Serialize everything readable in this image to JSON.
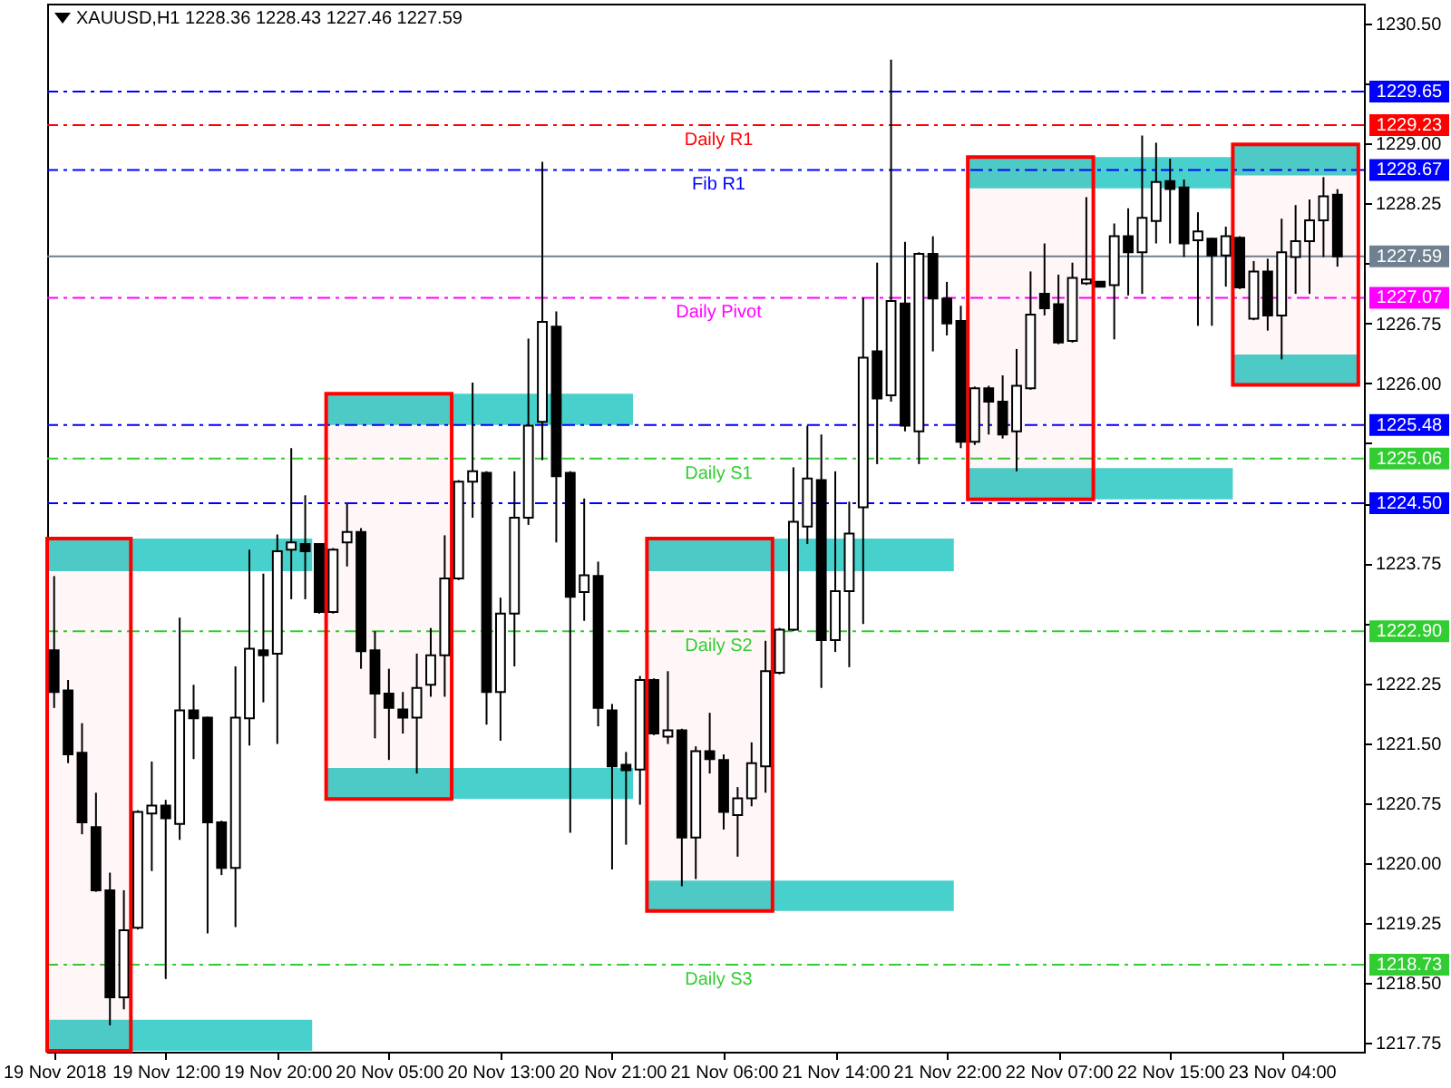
{
  "chart_data": {
    "type": "candlestick",
    "title": "XAUUSD,H1 1228.36 1228.43 1227.46 1227.59",
    "categories": [
      "19 Nov 2018",
      null,
      null,
      null,
      null,
      null,
      null,
      null,
      "19 Nov 12:00",
      null,
      null,
      null,
      null,
      null,
      null,
      null,
      "19 Nov 20:00",
      null,
      null,
      null,
      null,
      null,
      null,
      null,
      "20 Nov 05:00",
      null,
      null,
      null,
      null,
      null,
      null,
      null,
      "20 Nov 13:00",
      null,
      null,
      null,
      null,
      null,
      null,
      null,
      "20 Nov 21:00",
      null,
      null,
      null,
      null,
      null,
      null,
      null,
      "21 Nov 06:00",
      null,
      null,
      null,
      null,
      null,
      null,
      null,
      "21 Nov 14:00",
      null,
      null,
      null,
      null,
      null,
      null,
      null,
      "21 Nov 22:00",
      null,
      null,
      null,
      null,
      null,
      null,
      null,
      "22 Nov 07:00",
      null,
      null,
      null,
      null,
      null,
      null,
      null,
      "22 Nov 15:00",
      null,
      null,
      null,
      null,
      null,
      null,
      null,
      "23 Nov 04:00",
      null,
      null,
      null,
      null
    ],
    "ohlc": [
      [
        1222.66,
        1223.59,
        1221.94,
        1222.14
      ],
      [
        1222.16,
        1222.29,
        1221.25,
        1221.36
      ],
      [
        1221.38,
        1221.75,
        1220.36,
        1220.51
      ],
      [
        1220.45,
        1220.88,
        1219.64,
        1219.66
      ],
      [
        1219.66,
        1219.88,
        1217.97,
        1218.32
      ],
      [
        1218.32,
        1219.66,
        1218.17,
        1219.16
      ],
      [
        1219.19,
        1220.66,
        1219.17,
        1220.64
      ],
      [
        1220.62,
        1221.27,
        1219.9,
        1220.72
      ],
      [
        1220.72,
        1220.79,
        1218.55,
        1220.56
      ],
      [
        1220.49,
        1223.07,
        1220.29,
        1221.91
      ],
      [
        1221.91,
        1222.23,
        1221.3,
        1221.81
      ],
      [
        1221.82,
        1221.83,
        1219.12,
        1220.51
      ],
      [
        1220.51,
        1220.53,
        1219.85,
        1219.94
      ],
      [
        1219.94,
        1222.46,
        1219.2,
        1221.82
      ],
      [
        1221.81,
        1223.92,
        1221.47,
        1222.68
      ],
      [
        1222.66,
        1223.62,
        1222.01,
        1222.6
      ],
      [
        1222.62,
        1224.11,
        1221.49,
        1223.9
      ],
      [
        1223.92,
        1225.19,
        1223.3,
        1224.01
      ],
      [
        1223.99,
        1224.6,
        1223.3,
        1223.9
      ],
      [
        1223.99,
        1224.0,
        1223.12,
        1223.14
      ],
      [
        1223.14,
        1223.94,
        1223.12,
        1223.92
      ],
      [
        1224.01,
        1224.49,
        1223.71,
        1224.14
      ],
      [
        1224.14,
        1224.19,
        1222.43,
        1222.65
      ],
      [
        1222.66,
        1222.9,
        1221.56,
        1222.12
      ],
      [
        1222.12,
        1222.43,
        1221.29,
        1221.94
      ],
      [
        1221.92,
        1222.14,
        1221.62,
        1221.82
      ],
      [
        1221.82,
        1222.62,
        1221.12,
        1222.19
      ],
      [
        1222.23,
        1222.94,
        1222.08,
        1222.6
      ],
      [
        1222.6,
        1224.1,
        1222.08,
        1223.56
      ],
      [
        1223.56,
        1224.79,
        1223.54,
        1224.77
      ],
      [
        1224.77,
        1226.01,
        1224.32,
        1224.9
      ],
      [
        1224.88,
        1224.9,
        1221.73,
        1222.14
      ],
      [
        1222.14,
        1223.32,
        1221.53,
        1223.12
      ],
      [
        1223.12,
        1224.9,
        1222.46,
        1224.32
      ],
      [
        1224.32,
        1226.56,
        1224.23,
        1225.47
      ],
      [
        1225.52,
        1228.77,
        1225.04,
        1226.77
      ],
      [
        1226.71,
        1226.9,
        1224.01,
        1224.84
      ],
      [
        1224.88,
        1224.9,
        1220.38,
        1223.33
      ],
      [
        1223.39,
        1224.56,
        1223.03,
        1223.6
      ],
      [
        1223.59,
        1223.77,
        1221.71,
        1221.94
      ],
      [
        1221.91,
        1221.99,
        1219.92,
        1221.21
      ],
      [
        1221.23,
        1221.39,
        1220.23,
        1221.16
      ],
      [
        1221.17,
        1222.34,
        1220.73,
        1222.29
      ],
      [
        1222.29,
        1222.31,
        1221.6,
        1221.62
      ],
      [
        1221.58,
        1222.4,
        1221.49,
        1221.66
      ],
      [
        1221.66,
        1221.68,
        1219.71,
        1220.32
      ],
      [
        1220.32,
        1221.46,
        1219.8,
        1221.4
      ],
      [
        1221.4,
        1221.88,
        1221.12,
        1221.3
      ],
      [
        1221.29,
        1221.36,
        1220.42,
        1220.64
      ],
      [
        1220.6,
        1220.95,
        1220.08,
        1220.81
      ],
      [
        1220.81,
        1221.51,
        1220.71,
        1221.25
      ],
      [
        1221.21,
        1222.78,
        1220.88,
        1222.4
      ],
      [
        1222.38,
        1222.94,
        1222.36,
        1222.92
      ],
      [
        1222.92,
        1224.95,
        1222.9,
        1224.27
      ],
      [
        1224.21,
        1225.47,
        1223.99,
        1224.81
      ],
      [
        1224.79,
        1225.36,
        1222.19,
        1222.79
      ],
      [
        1222.79,
        1224.9,
        1222.64,
        1223.4
      ],
      [
        1223.4,
        1224.52,
        1222.45,
        1224.12
      ],
      [
        1224.45,
        1227.07,
        1222.99,
        1226.32
      ],
      [
        1226.4,
        1227.51,
        1224.99,
        1225.81
      ],
      [
        1225.85,
        1230.05,
        1225.77,
        1227.03
      ],
      [
        1227.0,
        1227.77,
        1225.4,
        1225.47
      ],
      [
        1225.4,
        1227.64,
        1224.99,
        1227.62
      ],
      [
        1227.62,
        1227.84,
        1226.4,
        1227.06
      ],
      [
        1227.06,
        1227.27,
        1226.6,
        1226.75
      ],
      [
        1226.78,
        1226.97,
        1225.19,
        1225.27
      ],
      [
        1225.27,
        1225.96,
        1225.23,
        1225.94
      ],
      [
        1225.94,
        1225.97,
        1225.36,
        1225.77
      ],
      [
        1225.77,
        1226.1,
        1225.31,
        1225.36
      ],
      [
        1225.4,
        1226.43,
        1224.9,
        1225.97
      ],
      [
        1225.94,
        1227.4,
        1225.92,
        1226.86
      ],
      [
        1227.12,
        1227.75,
        1226.85,
        1226.94
      ],
      [
        1226.99,
        1227.36,
        1226.49,
        1226.51
      ],
      [
        1226.53,
        1227.51,
        1226.51,
        1227.32
      ],
      [
        1227.25,
        1228.33,
        1227.23,
        1227.3
      ],
      [
        1227.27,
        1227.28,
        1227.2,
        1227.21
      ],
      [
        1227.23,
        1228.0,
        1226.55,
        1227.84
      ],
      [
        1227.84,
        1228.19,
        1227.1,
        1227.64
      ],
      [
        1227.64,
        1229.1,
        1227.12,
        1228.07
      ],
      [
        1228.03,
        1229.01,
        1227.75,
        1228.52
      ],
      [
        1228.53,
        1228.81,
        1227.75,
        1228.43
      ],
      [
        1228.45,
        1228.55,
        1227.58,
        1227.75
      ],
      [
        1227.79,
        1228.14,
        1226.72,
        1227.9
      ],
      [
        1227.81,
        1227.82,
        1226.72,
        1227.6
      ],
      [
        1227.6,
        1227.96,
        1227.21,
        1227.84
      ],
      [
        1227.82,
        1227.84,
        1227.18,
        1227.2
      ],
      [
        1226.81,
        1227.53,
        1226.79,
        1227.4
      ],
      [
        1227.4,
        1227.56,
        1226.66,
        1226.85
      ],
      [
        1226.85,
        1228.06,
        1226.3,
        1227.64
      ],
      [
        1227.58,
        1228.23,
        1227.12,
        1227.78
      ],
      [
        1227.78,
        1228.3,
        1227.12,
        1228.04
      ],
      [
        1228.04,
        1228.58,
        1227.58,
        1228.34
      ],
      [
        1228.36,
        1228.43,
        1227.46,
        1227.59
      ]
    ],
    "ylim": [
      1217.64,
      1230.75
    ],
    "yticks": [
      {
        "value": 1217.75,
        "label": "1217.75"
      },
      {
        "value": 1218.5,
        "label": "1218.50"
      },
      {
        "value": 1219.25,
        "label": "1219.25"
      },
      {
        "value": 1220.0,
        "label": "1220.00"
      },
      {
        "value": 1220.75,
        "label": "1220.75"
      },
      {
        "value": 1221.5,
        "label": "1221.50"
      },
      {
        "value": 1222.25,
        "label": "1222.25"
      },
      {
        "value": 1223.0,
        "label": null
      },
      {
        "value": 1223.75,
        "label": "1223.75"
      },
      {
        "value": 1224.5,
        "label": null
      },
      {
        "value": 1225.25,
        "label": null
      },
      {
        "value": 1226.0,
        "label": "1226.00"
      },
      {
        "value": 1226.75,
        "label": "1226.75"
      },
      {
        "value": 1227.5,
        "label": null
      },
      {
        "value": 1228.25,
        "label": "1228.25"
      },
      {
        "value": 1229.0,
        "label": "1229.00"
      },
      {
        "value": 1229.75,
        "label": null
      },
      {
        "value": 1230.5,
        "label": "1230.50"
      }
    ],
    "ref_lines": [
      {
        "axis": "y",
        "value": 1229.65,
        "label": null,
        "color": "#0000ff",
        "line_style": "dashed"
      },
      {
        "axis": "y",
        "value": 1229.23,
        "label": "Daily R1",
        "color": "#ff0000",
        "line_style": "dashed"
      },
      {
        "axis": "y",
        "value": 1228.67,
        "label": "Fib R1",
        "color": "#0000ff",
        "line_style": "dashed"
      },
      {
        "axis": "y",
        "value": 1227.59,
        "label": null,
        "color": "#708090",
        "line_style": "solid"
      },
      {
        "axis": "y",
        "value": 1227.07,
        "label": "Daily Pivot",
        "color": "#ff00ff",
        "line_style": "dashed"
      },
      {
        "axis": "y",
        "value": 1225.48,
        "label": null,
        "color": "#0000ff",
        "line_style": "dashed"
      },
      {
        "axis": "y",
        "value": 1225.06,
        "label": "Daily S1",
        "color": "#32cd32",
        "line_style": "dashed"
      },
      {
        "axis": "y",
        "value": 1224.5,
        "label": null,
        "color": "#0000ff",
        "line_style": "dashed"
      },
      {
        "axis": "y",
        "value": 1222.9,
        "label": "Daily S2",
        "color": "#32cd32",
        "line_style": "dashed"
      },
      {
        "axis": "y",
        "value": 1218.73,
        "label": "Daily S3",
        "color": "#32cd32",
        "line_style": "dashed"
      }
    ],
    "bands": [
      {
        "axis": "y",
        "from": 1223.65,
        "to": 1224.06,
        "color": "#48d1cc"
      },
      {
        "axis": "y",
        "from": 1217.65,
        "to": 1218.04,
        "color": "#48d1cc"
      },
      {
        "axis": "y",
        "from": 1225.48,
        "to": 1225.87,
        "color": "#48d1cc"
      },
      {
        "axis": "y",
        "from": 1220.8,
        "to": 1221.19,
        "color": "#48d1cc"
      },
      {
        "axis": "y",
        "from": 1223.65,
        "to": 1224.06,
        "color": "#48d1cc"
      },
      {
        "axis": "y",
        "from": 1219.4,
        "to": 1219.78,
        "color": "#48d1cc"
      },
      {
        "axis": "y",
        "from": 1228.44,
        "to": 1228.83,
        "color": "#48d1cc"
      },
      {
        "axis": "y",
        "from": 1224.55,
        "to": 1224.94,
        "color": "#48d1cc"
      },
      {
        "axis": "y",
        "from": 1228.6,
        "to": 1228.99,
        "color": "#48d1cc"
      },
      {
        "axis": "y",
        "from": 1225.98,
        "to": 1226.36,
        "color": "#48d1cc"
      },
      {
        "axis": "y",
        "from": 1217.65,
        "to": 1224.06,
        "color": "#ff0000"
      },
      {
        "axis": "y",
        "from": 1220.8,
        "to": 1225.87,
        "color": "#ff0000"
      },
      {
        "axis": "y",
        "from": 1219.4,
        "to": 1224.06,
        "color": "#ff0000"
      },
      {
        "axis": "y",
        "from": 1224.55,
        "to": 1228.83,
        "color": "#ff0000"
      },
      {
        "axis": "y",
        "from": 1225.98,
        "to": 1228.99,
        "color": "#ff0000"
      }
    ],
    "annotations": [
      "1229.65",
      "1229.23",
      "1228.67",
      "1227.59",
      "1227.07",
      "1225.48",
      "1225.06",
      "1224.50",
      "1222.90",
      "1218.73"
    ],
    "grid": false
  }
}
